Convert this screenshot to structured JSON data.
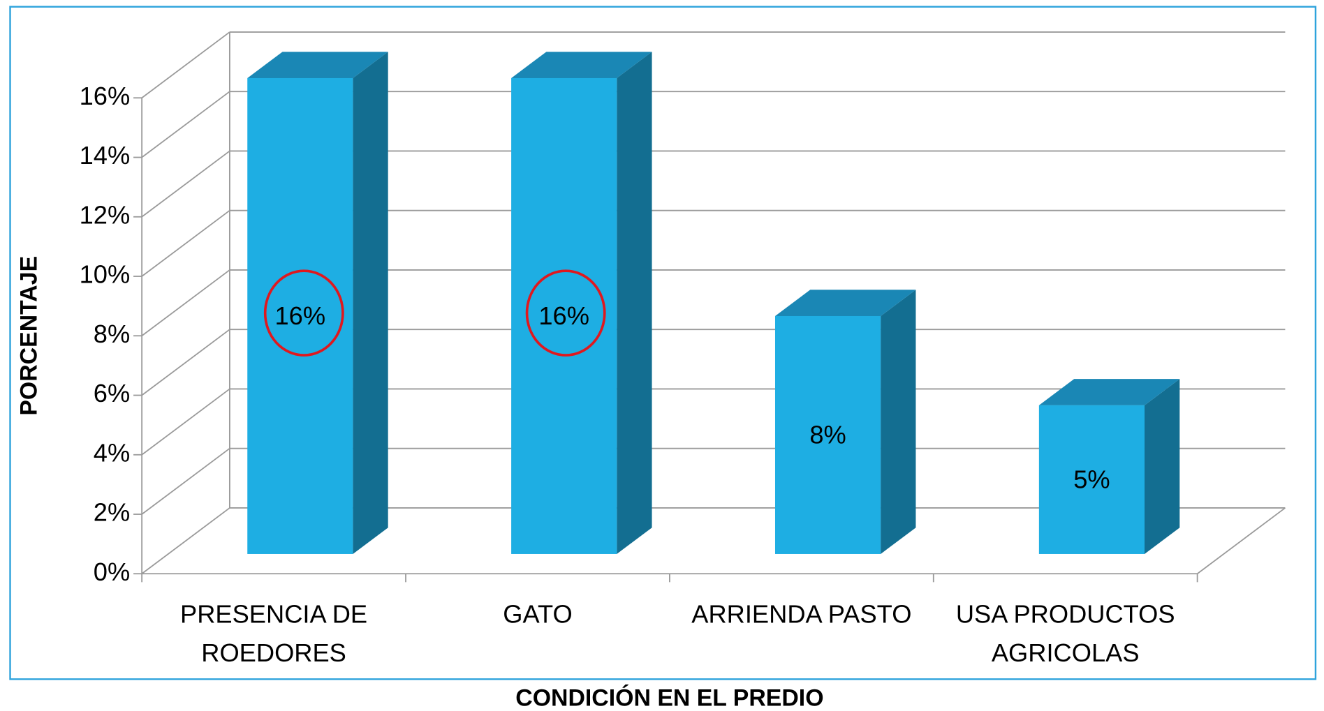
{
  "chart_data": {
    "type": "bar3d",
    "x_label": "CONDICIÓN EN EL PREDIO",
    "y_label": "PORCENTAJE",
    "categories": [
      "PRESENCIA DE ROEDORES",
      "GATO",
      "ARRIENDA PASTO",
      "USA PRODUCTOS AGRICOLAS"
    ],
    "values": [
      16,
      16,
      8,
      5
    ],
    "value_labels": [
      "16%",
      "16%",
      "8%",
      "5%"
    ],
    "color": "#1eaee3",
    "ylim": [
      0,
      16
    ],
    "yticks": [
      {
        "value": 0,
        "label": "0%"
      },
      {
        "value": 2,
        "label": "2%"
      },
      {
        "value": 4,
        "label": "4%"
      },
      {
        "value": 6,
        "label": "6%"
      },
      {
        "value": 8,
        "label": "8%"
      },
      {
        "value": 10,
        "label": "10%"
      },
      {
        "value": 12,
        "label": "12%"
      },
      {
        "value": 14,
        "label": "14%"
      },
      {
        "value": 16,
        "label": "16%"
      }
    ],
    "grid": true
  }
}
